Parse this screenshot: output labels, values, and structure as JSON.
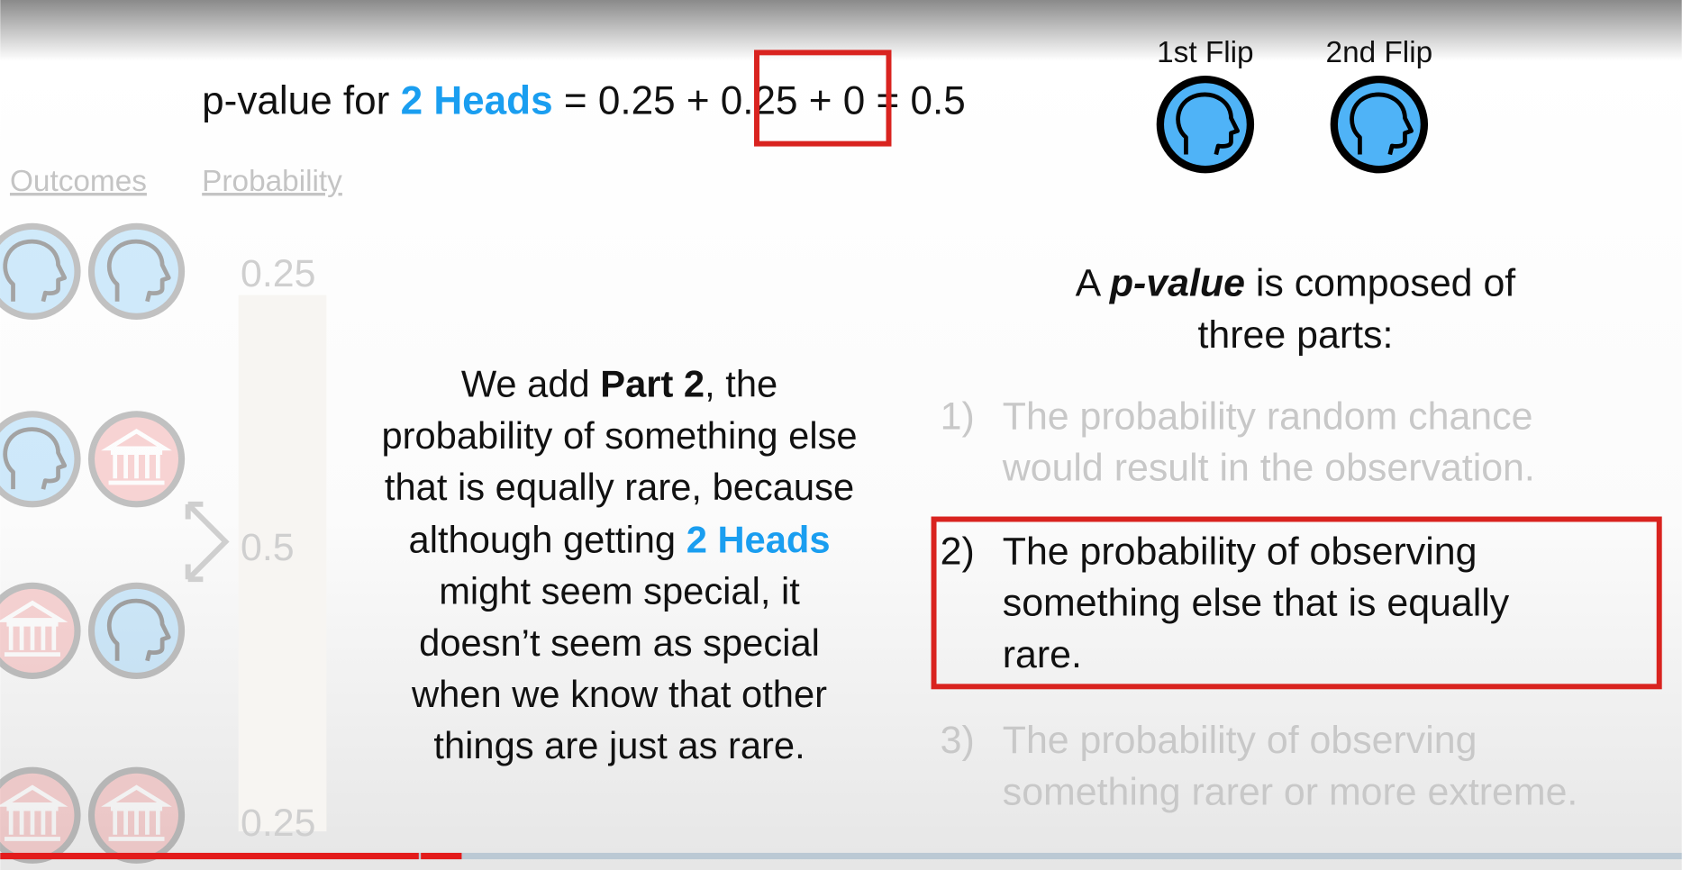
{
  "equation": [
    "p-value for ",
    "2 Heads",
    " = 0.25 + ",
    "0.25",
    " + 0 = 0.5"
  ],
  "flips": [
    "1st Flip",
    "2nd Flip"
  ],
  "table": {
    "headers": [
      "Outcomes",
      "Probability"
    ],
    "probabilities": [
      "0.25",
      "0.5",
      "0.25"
    ]
  },
  "explanation": [
    [
      "We add ",
      "Part 2",
      ", the"
    ],
    [
      "probability of something else"
    ],
    [
      "that is equally rare, because"
    ],
    [
      "although getting ",
      "2 Heads"
    ],
    [
      "might seem special, it"
    ],
    [
      "doesn’t seem as special"
    ],
    [
      "when we know that other"
    ],
    [
      "things are just as rare."
    ]
  ],
  "definition": {
    "heading": [
      [
        "A ",
        "p-value",
        " is composed of"
      ],
      [
        "three parts:"
      ]
    ],
    "items": [
      {
        "number": "1)",
        "lines": [
          "The probability random chance",
          "would result in the observation."
        ]
      },
      {
        "number": "2)",
        "lines": [
          "The probability of observing",
          "something else that is equally",
          "rare."
        ]
      },
      {
        "number": "3)",
        "lines": [
          "The probability of observing",
          "something rarer or more extreme."
        ]
      }
    ]
  }
}
